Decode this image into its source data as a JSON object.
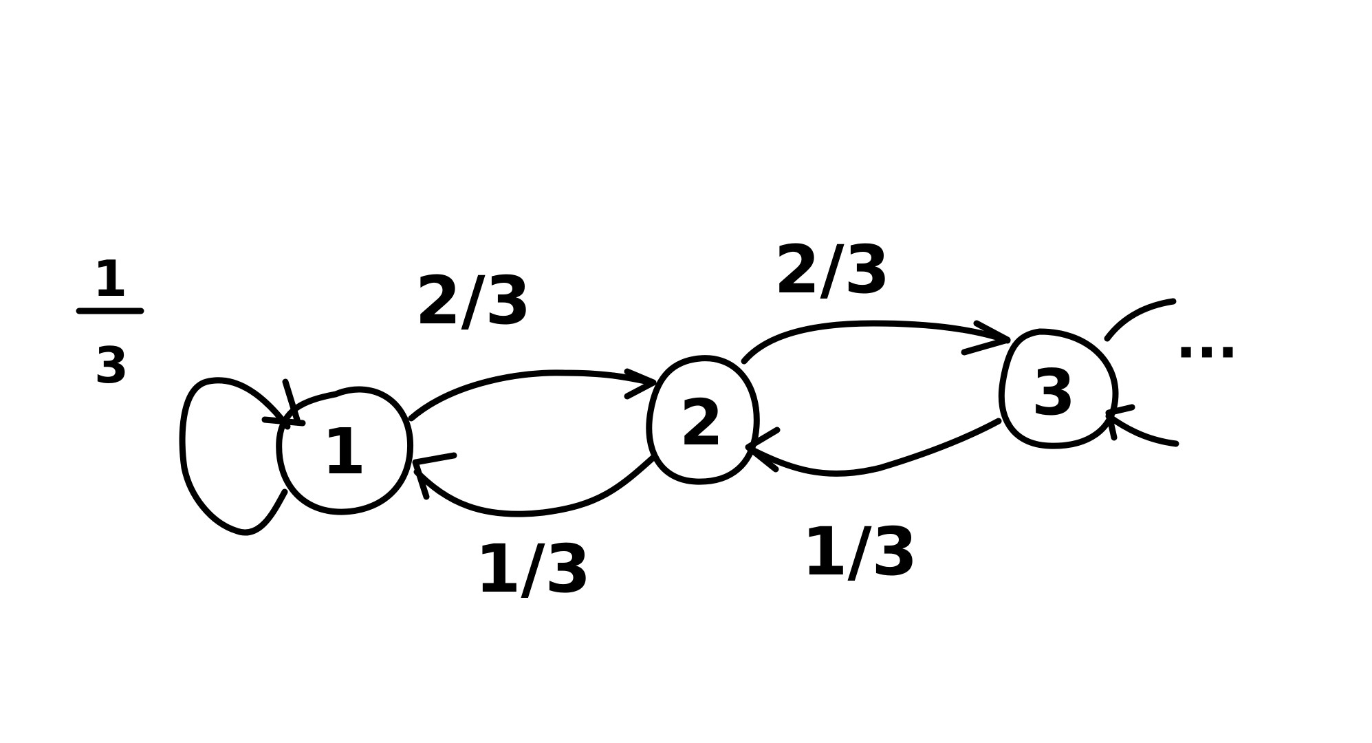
{
  "diagram": {
    "nodes": [
      {
        "id": "1",
        "label": "1"
      },
      {
        "id": "2",
        "label": "2"
      },
      {
        "id": "3",
        "label": "3"
      }
    ],
    "edges": [
      {
        "from": "1",
        "to": "1",
        "label_numerator": "1",
        "label_denominator": "3"
      },
      {
        "from": "1",
        "to": "2",
        "label": "2/3"
      },
      {
        "from": "2",
        "to": "1",
        "label": "1/3"
      },
      {
        "from": "2",
        "to": "3",
        "label": "2/3"
      },
      {
        "from": "3",
        "to": "2",
        "label": "1/3"
      }
    ],
    "continuation": "···"
  }
}
